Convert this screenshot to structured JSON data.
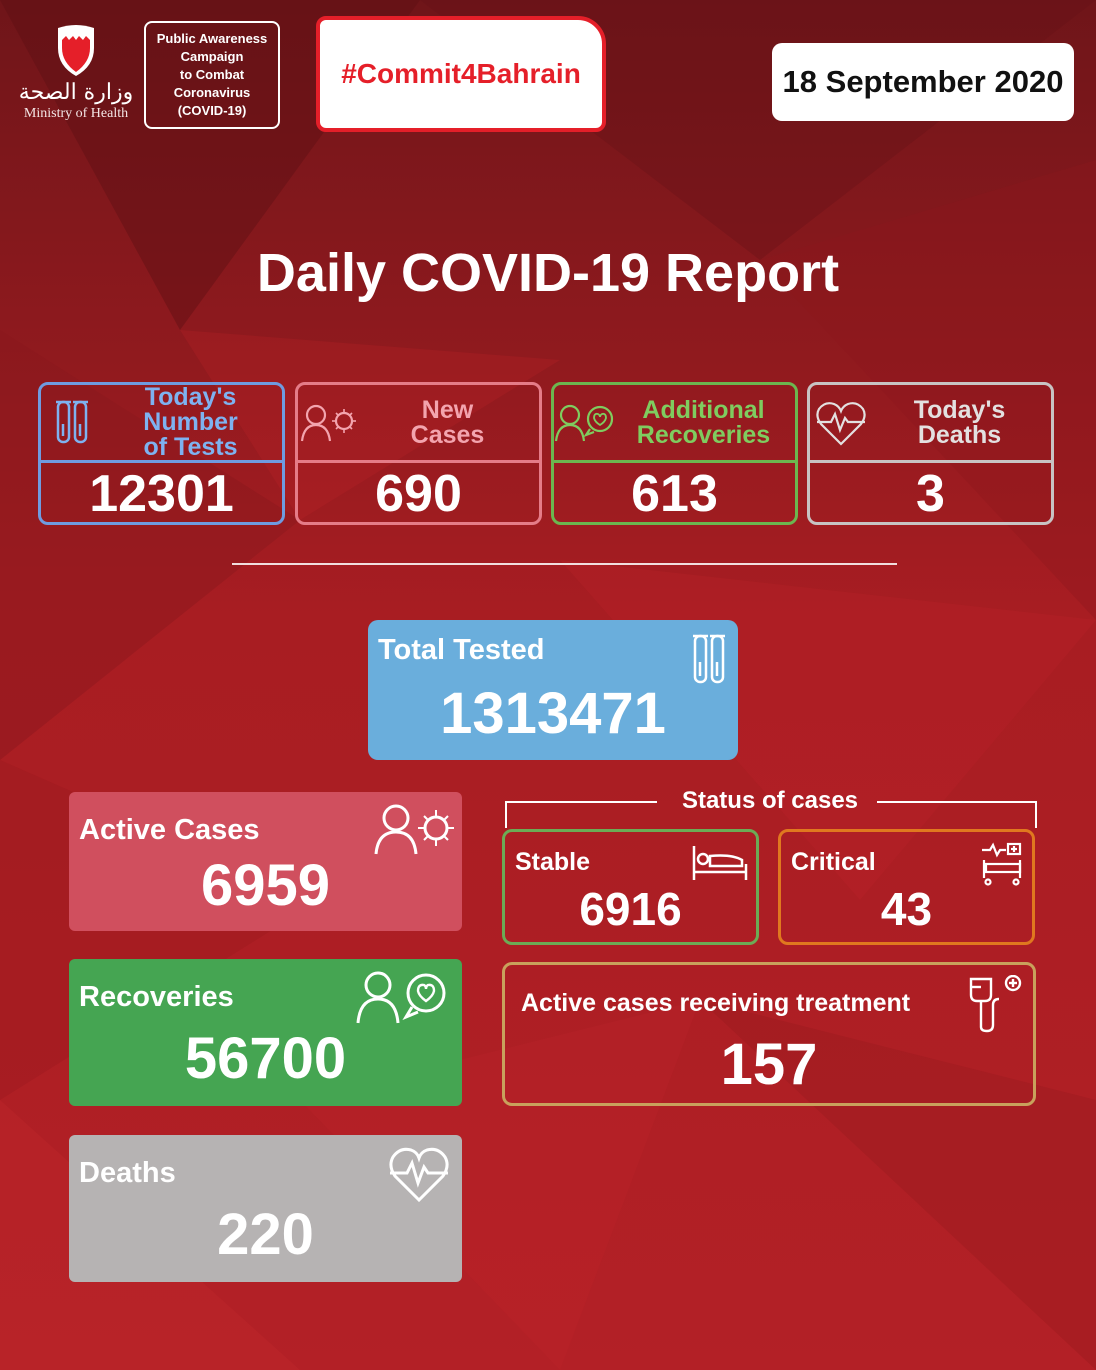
{
  "header": {
    "logo_arabic": "وزارة الصحة",
    "logo_english": "Ministry of Health",
    "campaign_lines": [
      "Public Awareness",
      "Campaign",
      "to Combat",
      "Coronavirus",
      "(COVID-19)"
    ],
    "hashtag": "#Commit4Bahrain",
    "date": "18 September 2020"
  },
  "title": "Daily COVID-19 Report",
  "daily": [
    {
      "label_line1": "Today's Number",
      "label_line2": "of Tests",
      "value": "12301",
      "icon": "test-tubes-icon",
      "color": "#6f9be0"
    },
    {
      "label_line1": "New",
      "label_line2": "Cases",
      "value": "690",
      "icon": "person-virus-icon",
      "color": "#e57c88"
    },
    {
      "label_line1": "Additional",
      "label_line2": "Recoveries",
      "value": "613",
      "icon": "person-heart-icon",
      "color": "#6cb64f"
    },
    {
      "label_line1": "Today's",
      "label_line2": "Deaths",
      "value": "3",
      "icon": "heartbeat-icon",
      "color": "#c8c3c3"
    }
  ],
  "total_tested": {
    "label": "Total Tested",
    "value": "1313471",
    "color": "#6aaedc",
    "icon": "test-tubes-icon"
  },
  "cumulative": {
    "active": {
      "label": "Active Cases",
      "value": "6959",
      "color": "#d04f5e",
      "icon": "person-virus-icon"
    },
    "recoveries": {
      "label": "Recoveries",
      "value": "56700",
      "color": "#45a552",
      "icon": "person-heart-icon"
    },
    "deaths": {
      "label": "Deaths",
      "value": "220",
      "color": "#b6b3b3",
      "icon": "heartbeat-icon"
    }
  },
  "status": {
    "title": "Status of cases",
    "stable": {
      "label": "Stable",
      "value": "6916",
      "color": "#6cab55",
      "icon": "hospital-bed-icon"
    },
    "critical": {
      "label": "Critical",
      "value": "43",
      "color": "#e0781f",
      "icon": "icu-bed-icon"
    },
    "treatment": {
      "label": "Active cases receiving treatment",
      "value": "157",
      "color": "#c9a15c",
      "icon": "iv-drip-icon"
    }
  },
  "colors": {
    "background": "#a51d22",
    "hashtag": "#e51f29"
  }
}
